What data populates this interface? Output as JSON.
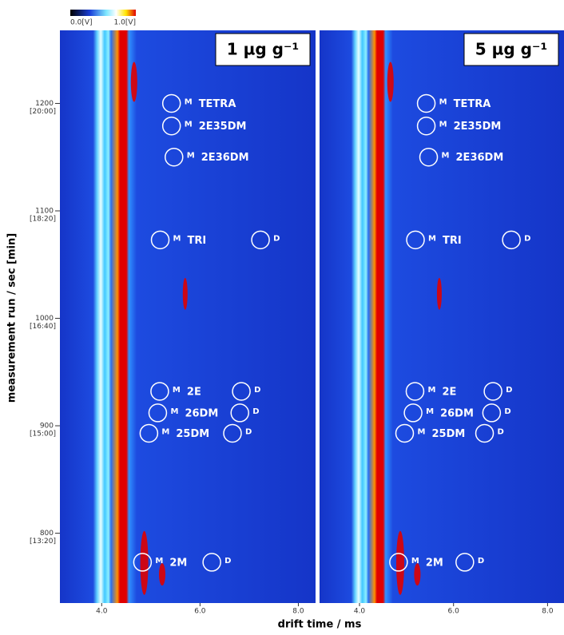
{
  "chart_data": {
    "type": "heatmap",
    "colorbar": {
      "ticks": [
        {
          "value": 0,
          "label": "0.0[V]"
        },
        {
          "value": 1,
          "label": "1.0[V]"
        }
      ]
    },
    "ylabel": "measurement run / sec [min]",
    "xlabel": "drift time / ms",
    "ylim": [
      735,
      1268
    ],
    "yticks": [
      {
        "value": 800,
        "label": "800",
        "sublabel": "[13:20]"
      },
      {
        "value": 900,
        "label": "900",
        "sublabel": "[15:00]"
      },
      {
        "value": 1000,
        "label": "1000",
        "sublabel": "[16:40]"
      },
      {
        "value": 1100,
        "label": "1100",
        "sublabel": "[18:20]"
      },
      {
        "value": 1200,
        "label": "1200",
        "sublabel": "[20:00]"
      }
    ],
    "xlim": [
      3.15,
      8.35
    ],
    "xticks": [
      {
        "value": 4,
        "label": "4.0"
      },
      {
        "value": 6,
        "label": "6.0"
      },
      {
        "value": 8,
        "label": "8.0"
      }
    ],
    "panels": [
      {
        "title": "1 µg g⁻¹"
      },
      {
        "title": "5 µg g⁻¹"
      }
    ],
    "monomer_label": "M",
    "dimer_label": "D",
    "compounds": [
      {
        "name": "TETRA",
        "y": 1200,
        "monomer_x": 5.42,
        "dimer_x": null
      },
      {
        "name": "2E35DM",
        "y": 1179,
        "monomer_x": 5.42,
        "dimer_x": null
      },
      {
        "name": "2E36DM",
        "y": 1150,
        "monomer_x": 5.47,
        "dimer_x": null
      },
      {
        "name": "TRI",
        "y": 1073,
        "monomer_x": 5.19,
        "dimer_x": 7.23
      },
      {
        "name": "2E",
        "y": 932,
        "monomer_x": 5.18,
        "dimer_x": 6.84
      },
      {
        "name": "26DM",
        "y": 912,
        "monomer_x": 5.14,
        "dimer_x": 6.81
      },
      {
        "name": "25DM",
        "y": 893,
        "monomer_x": 4.96,
        "dimer_x": 6.66
      },
      {
        "name": "2M",
        "y": 773,
        "monomer_x": 4.83,
        "dimer_x": 6.24
      }
    ]
  }
}
